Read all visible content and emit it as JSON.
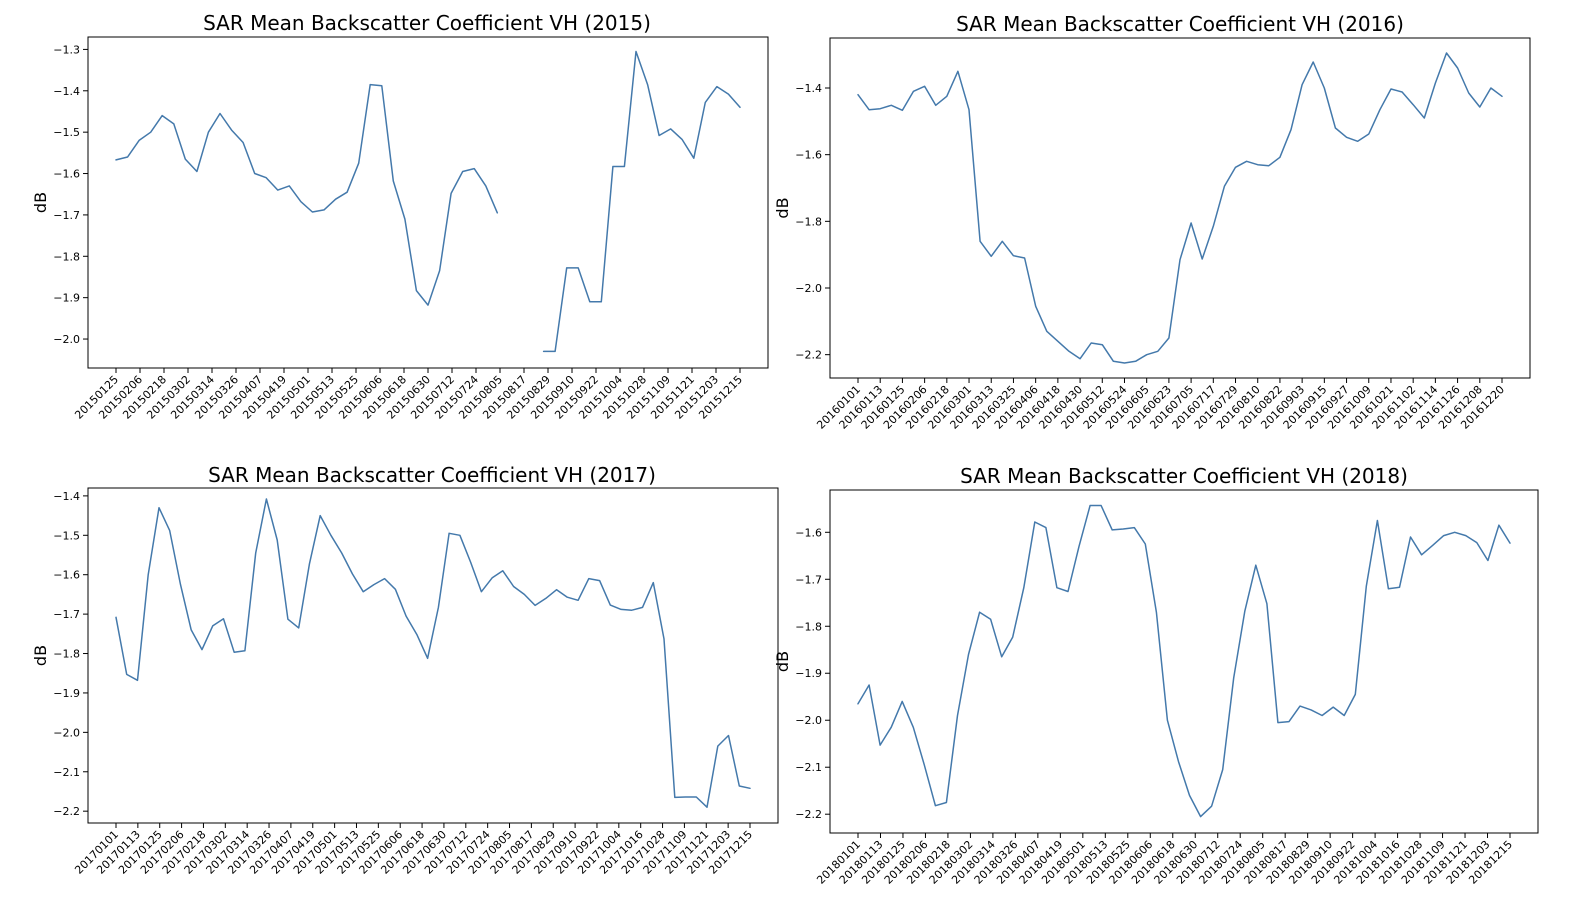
{
  "figure_title": "SAR Mean Backscatter Coefficient VH",
  "colors": {
    "line": "#4479ab",
    "axes": "#000000",
    "background": "#ffffff"
  },
  "chart_data": [
    {
      "type": "line",
      "title": "SAR Mean Backscatter Coefficient VH (2015)",
      "xlabel": "",
      "ylabel": "dB",
      "ylim": [
        -2.07,
        -1.27
      ],
      "yticks": [
        -1.3,
        -1.4,
        -1.5,
        -1.6,
        -1.7,
        -1.8,
        -1.9,
        -2.0
      ],
      "ytick_labels": [
        "−1.3",
        "−1.4",
        "−1.5",
        "−1.6",
        "−1.7",
        "−1.8",
        "−1.9",
        "−2.0"
      ],
      "x_tick_labels": [
        "20150125",
        "20150206",
        "20150218",
        "20150302",
        "20150314",
        "20150326",
        "20150407",
        "20150419",
        "20150501",
        "20150513",
        "20150525",
        "20150606",
        "20150618",
        "20150630",
        "20150712",
        "20150724",
        "20150805",
        "20150817",
        "20150829",
        "20150910",
        "20150922",
        "20151004",
        "20151028",
        "20151109",
        "20151121",
        "20151203",
        "20151215"
      ],
      "grid": false,
      "values": [
        -1.567,
        -1.56,
        -1.52,
        -1.5,
        -1.46,
        -1.48,
        -1.565,
        -1.595,
        -1.5,
        -1.455,
        -1.495,
        -1.525,
        -1.6,
        -1.61,
        -1.64,
        -1.63,
        -1.668,
        -1.693,
        -1.688,
        -1.662,
        -1.645,
        -1.575,
        -1.385,
        -1.388,
        -1.618,
        -1.71,
        -1.883,
        -1.918,
        -1.835,
        -1.648,
        -1.595,
        -1.588,
        -1.63,
        -1.695,
        null,
        null,
        null,
        -2.03,
        -2.03,
        -1.828,
        -1.828,
        -1.91,
        -1.91,
        -1.583,
        -1.583,
        -1.305,
        -1.385,
        -1.508,
        -1.492,
        -1.518,
        -1.563,
        -1.428,
        -1.39,
        -1.408,
        -1.44
      ]
    },
    {
      "type": "line",
      "title": "SAR Mean Backscatter Coefficient VH (2016)",
      "xlabel": "",
      "ylabel": "dB",
      "ylim": [
        -2.27,
        -1.25
      ],
      "yticks": [
        -1.4,
        -1.6,
        -1.8,
        -2.0,
        -2.2
      ],
      "ytick_labels": [
        "−1.4",
        "−1.6",
        "−1.8",
        "−2.0",
        "−2.2"
      ],
      "x_tick_labels": [
        "20160101",
        "20160113",
        "20160125",
        "20160206",
        "20160218",
        "20160301",
        "20160313",
        "20160325",
        "20160406",
        "20160418",
        "20160430",
        "20160512",
        "20160524",
        "20160605",
        "20160623",
        "20160705",
        "20160717",
        "20160729",
        "20160810",
        "20160822",
        "20160903",
        "20160915",
        "20160927",
        "20161009",
        "20161021",
        "20161102",
        "20161114",
        "20161126",
        "20161208",
        "20161220"
      ],
      "grid": false,
      "values": [
        -1.42,
        -1.465,
        -1.462,
        -1.452,
        -1.467,
        -1.41,
        -1.395,
        -1.452,
        -1.425,
        -1.35,
        -1.465,
        -1.86,
        -1.905,
        -1.86,
        -1.903,
        -1.91,
        -2.055,
        -2.13,
        -2.16,
        -2.19,
        -2.212,
        -2.165,
        -2.17,
        -2.22,
        -2.225,
        -2.22,
        -2.2,
        -2.19,
        -2.15,
        -1.915,
        -1.805,
        -1.913,
        -1.815,
        -1.695,
        -1.638,
        -1.62,
        -1.63,
        -1.633,
        -1.608,
        -1.525,
        -1.39,
        -1.322,
        -1.4,
        -1.52,
        -1.548,
        -1.56,
        -1.538,
        -1.465,
        -1.403,
        -1.412,
        -1.45,
        -1.49,
        -1.385,
        -1.295,
        -1.34,
        -1.415,
        -1.457,
        -1.4,
        -1.425
      ]
    },
    {
      "type": "line",
      "title": "SAR Mean Backscatter Coefficient VH (2017)",
      "xlabel": "",
      "ylabel": "dB",
      "ylim": [
        -2.23,
        -1.38
      ],
      "yticks": [
        -1.4,
        -1.5,
        -1.6,
        -1.7,
        -1.8,
        -1.9,
        -2.0,
        -2.1,
        -2.2
      ],
      "ytick_labels": [
        "−1.4",
        "−1.5",
        "−1.6",
        "−1.7",
        "−1.8",
        "−1.9",
        "−2.0",
        "−2.1",
        "−2.2"
      ],
      "x_tick_labels": [
        "20170101",
        "20170113",
        "20170125",
        "20170206",
        "20170218",
        "20170302",
        "20170314",
        "20170326",
        "20170407",
        "20170419",
        "20170501",
        "20170513",
        "20170525",
        "20170606",
        "20170618",
        "20170630",
        "20170712",
        "20170724",
        "20170805",
        "20170817",
        "20170829",
        "20170910",
        "20170922",
        "20171004",
        "20171016",
        "20171028",
        "20171109",
        "20171121",
        "20171203",
        "20171215"
      ],
      "grid": false,
      "values": [
        -1.708,
        -1.853,
        -1.868,
        -1.6,
        -1.43,
        -1.488,
        -1.625,
        -1.74,
        -1.79,
        -1.73,
        -1.712,
        -1.797,
        -1.793,
        -1.545,
        -1.408,
        -1.512,
        -1.713,
        -1.735,
        -1.573,
        -1.45,
        -1.5,
        -1.545,
        -1.598,
        -1.643,
        -1.625,
        -1.61,
        -1.637,
        -1.705,
        -1.752,
        -1.812,
        -1.683,
        -1.495,
        -1.5,
        -1.568,
        -1.643,
        -1.608,
        -1.59,
        -1.63,
        -1.65,
        -1.678,
        -1.66,
        -1.638,
        -1.657,
        -1.665,
        -1.61,
        -1.615,
        -1.677,
        -1.688,
        -1.69,
        -1.683,
        -1.62,
        -1.763,
        -2.165,
        -2.164,
        -2.164,
        -2.19,
        -2.035,
        -2.008,
        -2.136,
        -2.142
      ]
    },
    {
      "type": "line",
      "title": "SAR Mean Backscatter Coefficient VH (2018)",
      "xlabel": "",
      "ylabel": "dB",
      "ylim": [
        -2.24,
        -1.51
      ],
      "yticks": [
        -1.6,
        -1.7,
        -1.8,
        -1.9,
        -2.0,
        -2.1,
        -2.2
      ],
      "ytick_labels": [
        "−1.6",
        "−1.7",
        "−1.8",
        "−1.9",
        "−2.0",
        "−2.1",
        "−2.2"
      ],
      "x_tick_labels": [
        "20180101",
        "20180113",
        "20180125",
        "20180206",
        "20180218",
        "20180302",
        "20180314",
        "20180326",
        "20180407",
        "20180419",
        "20180501",
        "20180513",
        "20180525",
        "20180606",
        "20180618",
        "20180630",
        "20180712",
        "20180724",
        "20180805",
        "20180817",
        "20180829",
        "20180910",
        "20180922",
        "20181004",
        "20181016",
        "20181028",
        "20181109",
        "20181121",
        "20181203",
        "20181215"
      ],
      "grid": false,
      "values": [
        -1.965,
        -1.925,
        -2.053,
        -2.015,
        -1.96,
        -2.015,
        -2.095,
        -2.182,
        -2.175,
        -1.99,
        -1.86,
        -1.77,
        -1.785,
        -1.865,
        -1.823,
        -1.718,
        -1.578,
        -1.59,
        -1.718,
        -1.726,
        -1.63,
        -1.543,
        -1.543,
        -1.595,
        -1.593,
        -1.59,
        -1.625,
        -1.77,
        -2.0,
        -2.088,
        -2.16,
        -2.205,
        -2.183,
        -2.105,
        -1.91,
        -1.768,
        -1.67,
        -1.752,
        -2.005,
        -2.003,
        -1.97,
        -1.978,
        -1.99,
        -1.972,
        -1.99,
        -1.945,
        -1.715,
        -1.575,
        -1.72,
        -1.717,
        -1.61,
        -1.648,
        -1.628,
        -1.607,
        -1.6,
        -1.607,
        -1.622,
        -1.66,
        -1.585,
        -1.623
      ]
    }
  ]
}
